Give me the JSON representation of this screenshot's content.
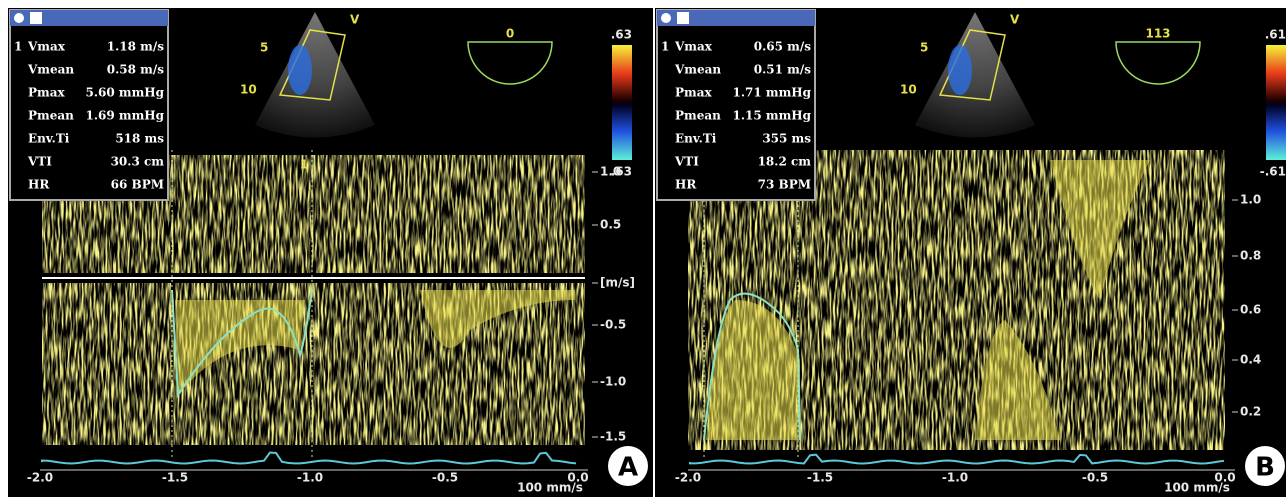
{
  "panels": [
    {
      "label": "A",
      "measurements": [
        [
          "1",
          "Vmax",
          "1.18 m/s"
        ],
        [
          "",
          "Vmean",
          "0.58 m/s"
        ],
        [
          "",
          "Pmax",
          "5.60 mmHg"
        ],
        [
          "",
          "Pmean",
          "1.69 mmHg"
        ],
        [
          "",
          "Env.Ti",
          "518 ms"
        ],
        [
          "",
          "VTI",
          "30.3 cm"
        ],
        [
          "",
          "HR",
          "66 BPM"
        ]
      ],
      "color_scale": [
        ".63",
        ".63"
      ],
      "angle": "0",
      "sector_labels": [
        "V",
        "5",
        "10"
      ],
      "cursor_label": "1",
      "velocity_axis": [
        "1.0",
        "0.5",
        "[m/s]",
        "-0.5",
        "-1.0",
        "-1.5"
      ],
      "time_axis": [
        "-2.0",
        "-1.5",
        "-1.0",
        "-0.5",
        "0.0"
      ],
      "sweep_speed": "100 mm/s"
    },
    {
      "label": "B",
      "measurements": [
        [
          "1",
          "Vmax",
          "0.65 m/s"
        ],
        [
          "",
          "Vmean",
          "0.51 m/s"
        ],
        [
          "",
          "Pmax",
          "1.71 mmHg"
        ],
        [
          "",
          "Pmean",
          "1.15 mmHg"
        ],
        [
          "",
          "Env.Ti",
          "355 ms"
        ],
        [
          "",
          "VTI",
          "18.2 cm"
        ],
        [
          "",
          "HR",
          "73 BPM"
        ]
      ],
      "color_scale": [
        ".61",
        "-.61"
      ],
      "angle": "113",
      "sector_labels": [
        "V",
        "5",
        "10"
      ],
      "cursor_label": "",
      "velocity_axis": [
        "1.0",
        "0.8",
        "0.6",
        "0.4",
        "0.2"
      ],
      "time_axis": [
        "-2.0",
        "-1.5",
        "-1.0",
        "-0.5",
        "0.0"
      ],
      "sweep_speed": "100 mm/s"
    }
  ]
}
